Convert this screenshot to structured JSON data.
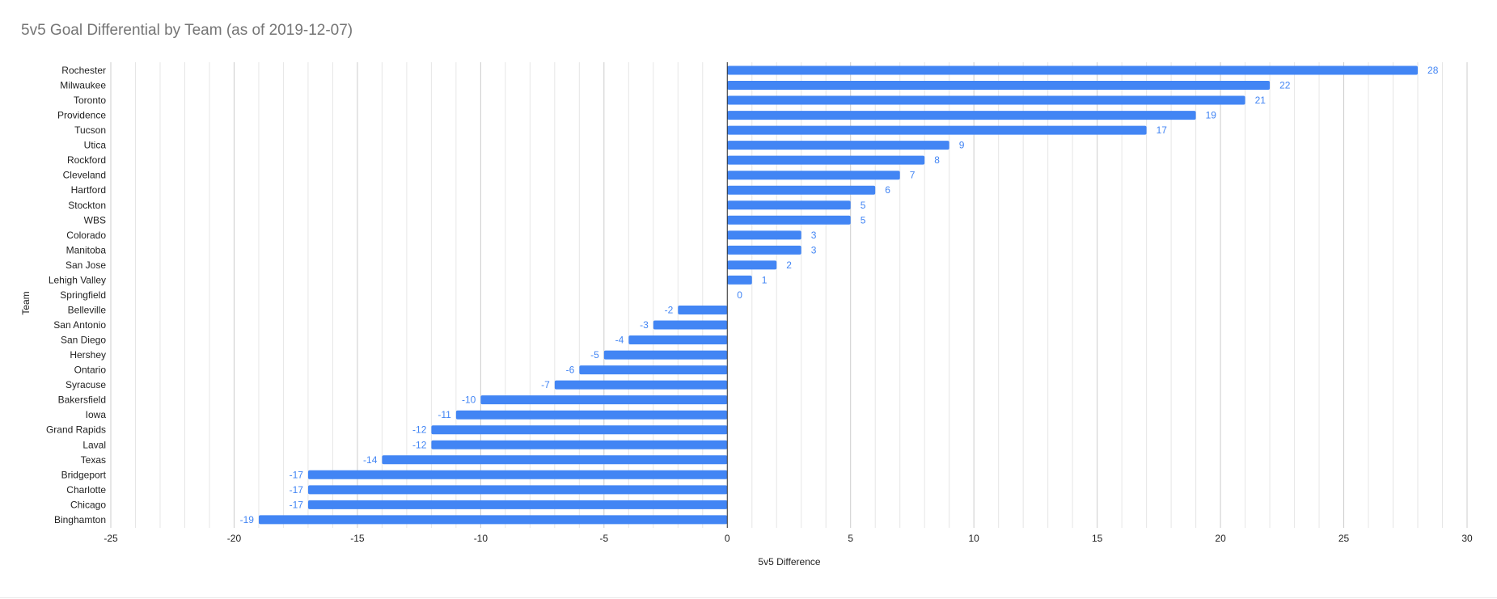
{
  "chart_data": {
    "type": "bar",
    "orientation": "horizontal",
    "title": "5v5 Goal Differential by Team (as of 2019-12-07)",
    "xlabel": "5v5 Difference",
    "ylabel": "Team",
    "xlim": [
      -25,
      30
    ],
    "x_ticks": [
      "-25",
      "-20",
      "-15",
      "-10",
      "-5",
      "0",
      "5",
      "10",
      "15",
      "20",
      "25",
      "30"
    ],
    "grid": "vertical minor and major gridlines",
    "bar_color": "#4285f4",
    "label_color": "#4285f4",
    "categories": [
      "Rochester",
      "Milwaukee",
      "Toronto",
      "Providence",
      "Tucson",
      "Utica",
      "Rockford",
      "Cleveland",
      "Hartford",
      "Stockton",
      "WBS",
      "Colorado",
      "Manitoba",
      "San Jose",
      "Lehigh Valley",
      "Springfield",
      "Belleville",
      "San Antonio",
      "San Diego",
      "Hershey",
      "Ontario",
      "Syracuse",
      "Bakersfield",
      "Iowa",
      "Grand Rapids",
      "Laval",
      "Texas",
      "Bridgeport",
      "Charlotte",
      "Chicago",
      "Binghamton"
    ],
    "values": [
      28,
      22,
      21,
      19,
      17,
      9,
      8,
      7,
      6,
      5,
      5,
      3,
      3,
      2,
      1,
      0,
      -2,
      -3,
      -4,
      -5,
      -6,
      -7,
      -10,
      -11,
      -12,
      -12,
      -14,
      -17,
      -17,
      -17,
      -19
    ],
    "value_labels": [
      "28",
      "22",
      "21",
      "19",
      "17",
      "9",
      "8",
      "7",
      "6",
      "5",
      "5",
      "3",
      "3",
      "2",
      "1",
      "0",
      "-2",
      "-3",
      "-4",
      "-5",
      "-6",
      "-7",
      "-10",
      "-11",
      "-12",
      "-12",
      "-14",
      "-17",
      "-17",
      "-17",
      "-19"
    ]
  }
}
